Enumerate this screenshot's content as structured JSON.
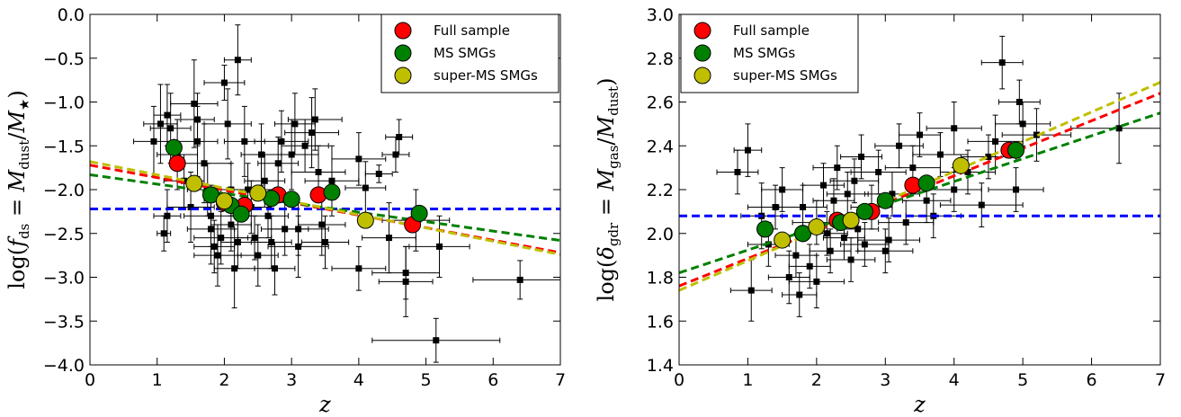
{
  "chart_data": [
    {
      "type": "scatter",
      "title": "",
      "xlabel": "z",
      "ylabel": "log(f_ds = M_dust / M_★)",
      "ylabel_parts": {
        "pre": "log(",
        "f": "f",
        "sub1": "ds",
        "mid": " = ",
        "M1": "M",
        "sub2": "dust",
        "slash": "/",
        "M2": "M",
        "sub3": "★",
        "post": ")"
      },
      "xlim": [
        0,
        7
      ],
      "ylim": [
        -4.0,
        0.0
      ],
      "xticks": [
        "0",
        "1",
        "2",
        "3",
        "4",
        "5",
        "6",
        "7"
      ],
      "yticks": [
        "0.0",
        "−0.5",
        "−1.0",
        "−1.5",
        "−2.0",
        "−2.5",
        "−3.0",
        "−3.5",
        "−4.0"
      ],
      "grid": false,
      "legend_position": "top-right",
      "legend": [
        {
          "label": "Full sample",
          "color": "#ff0000"
        },
        {
          "label": "MS SMGs",
          "color": "#008000"
        },
        {
          "label": "super-MS SMGs",
          "color": "#bfbf00"
        }
      ],
      "reference_line": {
        "y": -2.22,
        "color": "#0000ff"
      },
      "fits": [
        {
          "name": "Full sample",
          "color": "#ff0000",
          "x": [
            0,
            7
          ],
          "y": [
            -1.72,
            -2.72
          ]
        },
        {
          "name": "MS SMGs",
          "color": "#008000",
          "x": [
            0,
            7
          ],
          "y": [
            -1.83,
            -2.58
          ]
        },
        {
          "name": "super-MS SMGs",
          "color": "#bfbf00",
          "x": [
            0,
            7
          ],
          "y": [
            -1.68,
            -2.74
          ]
        }
      ],
      "binned": [
        {
          "name": "Full sample",
          "color": "#ff0000",
          "points": [
            [
              1.3,
              -1.7
            ],
            [
              2.0,
              -2.15
            ],
            [
              2.3,
              -2.18
            ],
            [
              2.8,
              -2.06
            ],
            [
              3.4,
              -2.06
            ],
            [
              4.8,
              -2.4
            ]
          ]
        },
        {
          "name": "MS SMGs",
          "color": "#008000",
          "points": [
            [
              1.25,
              -1.52
            ],
            [
              1.8,
              -2.06
            ],
            [
              2.1,
              -2.18
            ],
            [
              2.25,
              -2.28
            ],
            [
              2.7,
              -2.1
            ],
            [
              3.0,
              -2.11
            ],
            [
              3.6,
              -2.03
            ],
            [
              4.9,
              -2.27
            ]
          ]
        },
        {
          "name": "super-MS SMGs",
          "color": "#bfbf00",
          "points": [
            [
              1.55,
              -1.93
            ],
            [
              2.0,
              -2.13
            ],
            [
              2.5,
              -2.04
            ],
            [
              4.1,
              -2.35
            ]
          ]
        }
      ],
      "individual": [
        [
          1.05,
          -1.25,
          0.25,
          0.45
        ],
        [
          1.15,
          -1.15,
          0.2,
          0.35
        ],
        [
          1.2,
          -1.3,
          0.3,
          0.4
        ],
        [
          1.3,
          -1.6,
          0.3,
          0.4
        ],
        [
          1.15,
          -2.3,
          0.2,
          0.3
        ],
        [
          1.1,
          -2.5,
          0.1,
          0.2
        ],
        [
          1.4,
          -1.9,
          0.3,
          0.3
        ],
        [
          1.5,
          -2.2,
          0.35,
          0.4
        ],
        [
          1.55,
          -1.02,
          0.35,
          0.5
        ],
        [
          1.6,
          -1.2,
          0.25,
          0.3
        ],
        [
          1.6,
          -1.45,
          0.3,
          0.4
        ],
        [
          1.7,
          -1.7,
          0.4,
          0.45
        ],
        [
          1.75,
          -2.0,
          0.3,
          0.3
        ],
        [
          1.8,
          -2.3,
          0.4,
          0.35
        ],
        [
          1.8,
          -2.45,
          0.35,
          0.4
        ],
        [
          1.85,
          -2.65,
          0.3,
          0.3
        ],
        [
          1.9,
          -2.75,
          0.35,
          0.35
        ],
        [
          1.95,
          -2.55,
          0.4,
          0.3
        ],
        [
          2.0,
          -0.78,
          0.3,
          0.2
        ],
        [
          2.05,
          -1.25,
          0.35,
          0.4
        ],
        [
          2.1,
          -2.0,
          0.4,
          0.3
        ],
        [
          2.1,
          -2.4,
          0.3,
          0.3
        ],
        [
          2.15,
          -2.9,
          0.3,
          0.45
        ],
        [
          2.2,
          -2.6,
          0.25,
          0.3
        ],
        [
          2.2,
          -0.52,
          0.2,
          0.4
        ],
        [
          2.3,
          -1.45,
          0.3,
          0.4
        ],
        [
          2.35,
          -2.0,
          0.4,
          0.3
        ],
        [
          2.4,
          -2.2,
          0.3,
          0.3
        ],
        [
          2.45,
          -2.55,
          0.25,
          0.25
        ],
        [
          2.5,
          -2.75,
          0.3,
          0.35
        ],
        [
          2.55,
          -1.6,
          0.3,
          0.35
        ],
        [
          2.6,
          -1.9,
          0.3,
          0.3
        ],
        [
          2.65,
          -2.3,
          0.3,
          0.25
        ],
        [
          2.7,
          -2.6,
          0.3,
          0.3
        ],
        [
          2.75,
          -2.9,
          0.3,
          0.3
        ],
        [
          2.8,
          -1.7,
          0.3,
          0.3
        ],
        [
          2.85,
          -1.45,
          0.4,
          0.35
        ],
        [
          2.9,
          -2.45,
          0.35,
          0.3
        ],
        [
          3.0,
          -1.6,
          0.4,
          0.4
        ],
        [
          3.05,
          -1.25,
          0.3,
          0.35
        ],
        [
          3.1,
          -2.45,
          0.45,
          0.3
        ],
        [
          3.2,
          -1.5,
          0.35,
          0.3
        ],
        [
          3.3,
          -1.35,
          0.4,
          0.4
        ],
        [
          3.35,
          -1.2,
          0.4,
          0.35
        ],
        [
          3.4,
          -1.8,
          0.4,
          0.3
        ],
        [
          3.45,
          -2.4,
          0.35,
          0.35
        ],
        [
          3.5,
          -2.6,
          0.35,
          0.3
        ],
        [
          3.6,
          -1.9,
          0.4,
          0.4
        ],
        [
          4.0,
          -1.65,
          0.4,
          0.3
        ],
        [
          4.1,
          -1.98,
          0.3,
          0.3
        ],
        [
          4.3,
          -1.82,
          0.2,
          0.1
        ],
        [
          4.45,
          -2.55,
          0.4,
          0.4
        ],
        [
          4.55,
          -1.6,
          0.2,
          0.2
        ],
        [
          4.6,
          -1.4,
          0.2,
          0.2
        ],
        [
          4.7,
          -2.95,
          0.5,
          0.3
        ],
        [
          4.7,
          -3.05,
          0.4,
          0.4
        ],
        [
          4.85,
          -2.35,
          0.5,
          0.35
        ],
        [
          5.2,
          -2.65,
          0.45,
          0.35
        ],
        [
          4.0,
          -2.9,
          0.4,
          0.25
        ],
        [
          3.1,
          -2.65,
          0.45,
          0.35
        ],
        [
          5.15,
          -3.72,
          0.95,
          0.25
        ],
        [
          6.4,
          -3.03,
          0.7,
          0.22
        ],
        [
          0.95,
          -1.45,
          0.3,
          0.4
        ]
      ]
    },
    {
      "type": "scatter",
      "title": "",
      "xlabel": "z",
      "ylabel": "log(δ_gdr = M_gas / M_dust)",
      "ylabel_parts": {
        "pre": "log(",
        "f": "δ",
        "sub1": "gdr",
        "mid": " = ",
        "M1": "M",
        "sub2": "gas",
        "slash": "/",
        "M2": "M",
        "sub3": "dust",
        "post": ")"
      },
      "xlim": [
        0,
        7
      ],
      "ylim": [
        1.4,
        3.0
      ],
      "xticks": [
        "0",
        "1",
        "2",
        "3",
        "4",
        "5",
        "6",
        "7"
      ],
      "yticks": [
        "3.0",
        "2.8",
        "2.6",
        "2.4",
        "2.2",
        "2.0",
        "1.8",
        "1.6",
        "1.4"
      ],
      "grid": false,
      "legend_position": "top-left",
      "legend": [
        {
          "label": "Full sample",
          "color": "#ff0000"
        },
        {
          "label": "MS SMGs",
          "color": "#008000"
        },
        {
          "label": "super-MS SMGs",
          "color": "#bfbf00"
        }
      ],
      "reference_line": {
        "y": 2.08,
        "color": "#0000ff"
      },
      "fits": [
        {
          "name": "Full sample",
          "color": "#ff0000",
          "x": [
            0,
            7
          ],
          "y": [
            1.76,
            2.64
          ]
        },
        {
          "name": "MS SMGs",
          "color": "#008000",
          "x": [
            0,
            7
          ],
          "y": [
            1.82,
            2.55
          ]
        },
        {
          "name": "super-MS SMGs",
          "color": "#bfbf00",
          "x": [
            0,
            7
          ],
          "y": [
            1.74,
            2.69
          ]
        }
      ],
      "binned": [
        {
          "name": "Full sample",
          "color": "#ff0000",
          "points": [
            [
              1.8,
              2.0
            ],
            [
              2.3,
              2.06
            ],
            [
              2.8,
              2.1
            ],
            [
              3.4,
              2.22
            ],
            [
              4.8,
              2.38
            ]
          ]
        },
        {
          "name": "MS SMGs",
          "color": "#008000",
          "points": [
            [
              1.25,
              2.02
            ],
            [
              1.8,
              2.0
            ],
            [
              2.35,
              2.05
            ],
            [
              2.7,
              2.1
            ],
            [
              3.0,
              2.15
            ],
            [
              3.6,
              2.23
            ],
            [
              4.9,
              2.38
            ]
          ]
        },
        {
          "name": "super-MS SMGs",
          "color": "#bfbf00",
          "points": [
            [
              1.5,
              1.97
            ],
            [
              2.0,
              2.03
            ],
            [
              2.5,
              2.06
            ],
            [
              4.1,
              2.31
            ]
          ]
        }
      ],
      "individual": [
        [
          0.85,
          2.28,
          0.3,
          0.1
        ],
        [
          1.0,
          2.38,
          0.2,
          0.12
        ],
        [
          1.05,
          1.74,
          0.3,
          0.14
        ],
        [
          1.2,
          2.08,
          0.3,
          0.15
        ],
        [
          1.3,
          1.95,
          0.3,
          0.1
        ],
        [
          1.5,
          2.2,
          0.3,
          0.1
        ],
        [
          1.6,
          1.8,
          0.3,
          0.12
        ],
        [
          1.7,
          1.9,
          0.3,
          0.1
        ],
        [
          1.75,
          1.72,
          0.25,
          0.1
        ],
        [
          1.8,
          2.12,
          0.35,
          0.1
        ],
        [
          1.9,
          1.85,
          0.3,
          0.1
        ],
        [
          2.0,
          2.05,
          0.35,
          0.1
        ],
        [
          2.0,
          1.78,
          0.4,
          0.12
        ],
        [
          2.1,
          2.22,
          0.3,
          0.1
        ],
        [
          2.2,
          1.92,
          0.3,
          0.1
        ],
        [
          2.25,
          2.15,
          0.3,
          0.1
        ],
        [
          2.3,
          2.3,
          0.35,
          0.1
        ],
        [
          2.4,
          1.98,
          0.3,
          0.1
        ],
        [
          2.45,
          2.18,
          0.3,
          0.1
        ],
        [
          2.5,
          1.88,
          0.35,
          0.1
        ],
        [
          2.55,
          2.24,
          0.35,
          0.1
        ],
        [
          2.6,
          2.02,
          0.3,
          0.1
        ],
        [
          2.65,
          2.35,
          0.3,
          0.1
        ],
        [
          2.7,
          1.95,
          0.35,
          0.1
        ],
        [
          2.8,
          2.12,
          0.3,
          0.1
        ],
        [
          2.9,
          2.28,
          0.4,
          0.1
        ],
        [
          3.0,
          1.92,
          0.4,
          0.1
        ],
        [
          3.1,
          2.18,
          0.4,
          0.1
        ],
        [
          3.2,
          2.4,
          0.35,
          0.1
        ],
        [
          3.3,
          2.05,
          0.4,
          0.1
        ],
        [
          3.4,
          2.3,
          0.4,
          0.1
        ],
        [
          3.5,
          2.45,
          0.3,
          0.1
        ],
        [
          3.6,
          2.15,
          0.35,
          0.1
        ],
        [
          3.7,
          2.08,
          0.4,
          0.1
        ],
        [
          3.8,
          2.36,
          0.4,
          0.1
        ],
        [
          4.0,
          2.48,
          0.4,
          0.12
        ],
        [
          4.0,
          2.2,
          0.4,
          0.1
        ],
        [
          4.2,
          2.28,
          0.4,
          0.1
        ],
        [
          4.5,
          2.35,
          0.4,
          0.1
        ],
        [
          4.6,
          2.42,
          0.4,
          0.12
        ],
        [
          4.7,
          2.78,
          0.3,
          0.12
        ],
        [
          4.9,
          2.2,
          0.4,
          0.1
        ],
        [
          4.95,
          2.6,
          0.3,
          0.1
        ],
        [
          5.0,
          2.5,
          0.4,
          0.1
        ],
        [
          5.2,
          2.45,
          0.5,
          0.12
        ],
        [
          4.4,
          2.13,
          0.6,
          0.1
        ],
        [
          6.4,
          2.48,
          0.7,
          0.16
        ],
        [
          1.4,
          2.12,
          0.4,
          0.1
        ],
        [
          2.15,
          2.0,
          0.3,
          0.1
        ],
        [
          3.05,
          1.97,
          0.45,
          0.1
        ]
      ]
    }
  ]
}
